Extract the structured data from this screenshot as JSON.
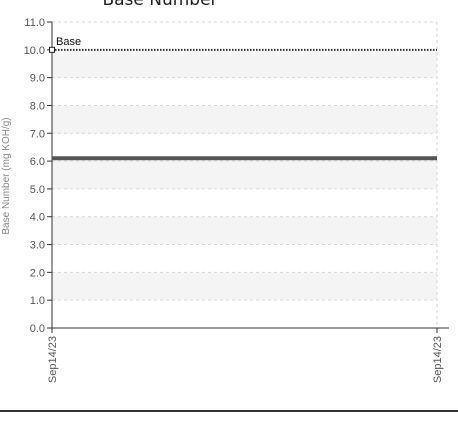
{
  "chart_data": {
    "type": "line",
    "title": "Base Number",
    "xlabel": "",
    "ylabel": "Base Number (mg KOH/g)",
    "ylim": [
      0,
      11
    ],
    "y_ticks": [
      "0.0",
      "1.0",
      "2.0",
      "3.0",
      "4.0",
      "5.0",
      "6.0",
      "7.0",
      "8.0",
      "9.0",
      "10.0",
      "11.0"
    ],
    "x_ticks": [
      "Sep14/23",
      "Sep14/23"
    ],
    "grid": true,
    "series": [
      {
        "name": "Base",
        "style": "dotted",
        "color": "#333333",
        "values": [
          10.0,
          10.0
        ]
      },
      {
        "style": "solid",
        "color": "#555555",
        "values": [
          6.1,
          6.1
        ]
      }
    ]
  }
}
